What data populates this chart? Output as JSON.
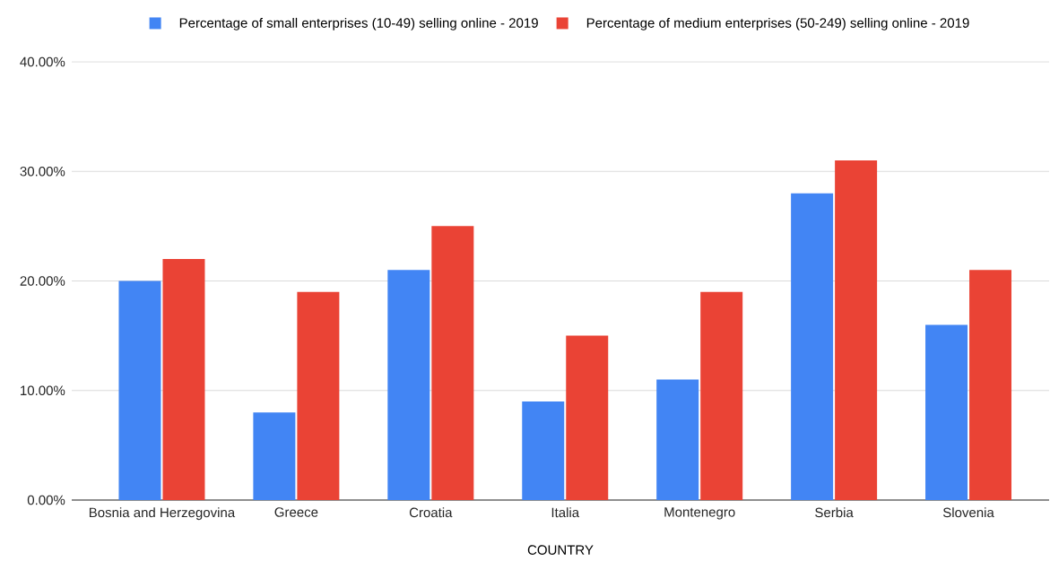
{
  "chart_data": {
    "type": "bar",
    "xlabel": "COUNTRY",
    "categories": [
      "Bosnia and Herzegovina",
      "Greece",
      "Croatia",
      "Italia",
      "Montenegro",
      "Serbia",
      "Slovenia"
    ],
    "series": [
      {
        "name": "Percentage of small enterprises (10-49) selling online - 2019",
        "color": "#4285f4",
        "values": [
          20,
          8,
          21,
          9,
          11,
          28,
          16
        ]
      },
      {
        "name": "Percentage of medium enterprises (50-249) selling online - 2019",
        "color": "#ea4335",
        "values": [
          22,
          19,
          25,
          15,
          19,
          31,
          21
        ]
      }
    ],
    "ylim": [
      0,
      40
    ],
    "yticks": [
      {
        "value": 0,
        "label": "0.00%"
      },
      {
        "value": 10,
        "label": "10.00%"
      },
      {
        "value": 20,
        "label": "20.00%"
      },
      {
        "value": 30,
        "label": "30.00%"
      },
      {
        "value": 40,
        "label": "40.00%"
      }
    ],
    "grid": "y",
    "legend": "top"
  }
}
